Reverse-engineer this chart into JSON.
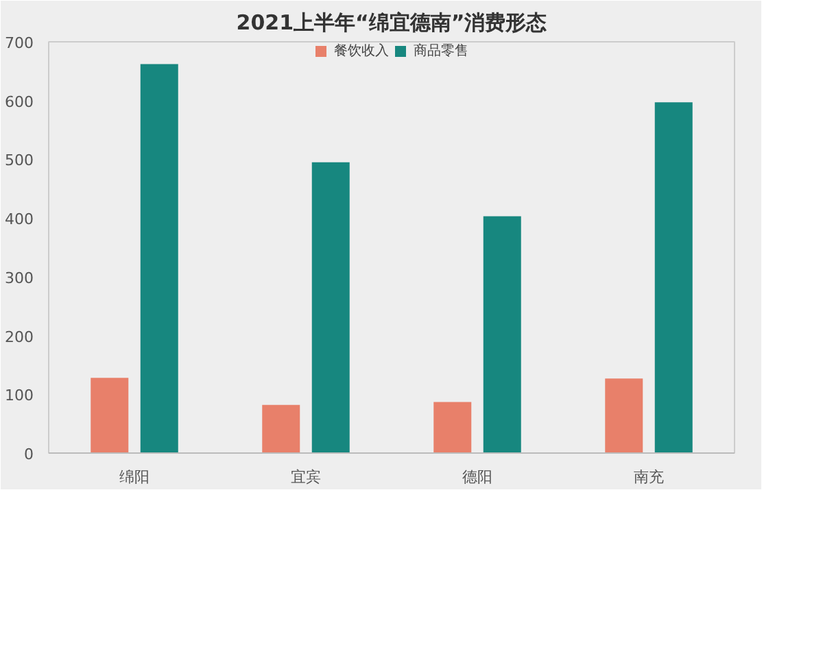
{
  "chart_data": {
    "type": "bar",
    "title": "2021上半年“绵宜德南”消费形态",
    "categories": [
      "绵阳",
      "宜宾",
      "德阳",
      "南充"
    ],
    "series": [
      {
        "name": "餐饮收入",
        "color": "#e8806a",
        "values": [
          128,
          82,
          87,
          127
        ]
      },
      {
        "name": "商品零售",
        "color": "#17877f",
        "values": [
          662,
          495,
          403,
          597
        ]
      }
    ],
    "ylim": [
      0,
      700
    ],
    "yticks": [
      0,
      100,
      200,
      300,
      400,
      500,
      600,
      700
    ],
    "grid": false,
    "legend": "top"
  }
}
